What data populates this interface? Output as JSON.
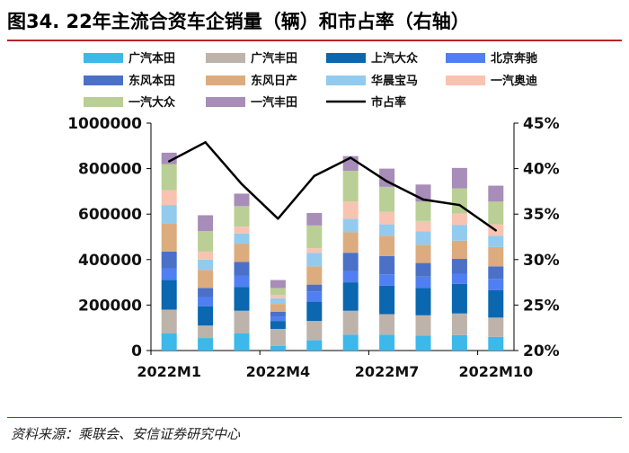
{
  "header": {
    "title": "图34. 22年主流合资车企销量（辆）和市占率（右轴）"
  },
  "footer": {
    "source": "资料来源：乘联会、安信证券研究中心"
  },
  "chart_data": {
    "type": "bar",
    "stacked": true,
    "title": "22年主流合资车企销量（辆）和市占率（右轴）",
    "categories": [
      "2022M1",
      "2022M2",
      "2022M3",
      "2022M4",
      "2022M5",
      "2022M6",
      "2022M7",
      "2022M8",
      "2022M9",
      "2022M10"
    ],
    "x_tick_labels": [
      "2022M1",
      "",
      "",
      "2022M4",
      "",
      "",
      "2022M7",
      "",
      "",
      "2022M10"
    ],
    "y_left": {
      "ylim": [
        0,
        1000000
      ],
      "ticks": [
        0,
        200000,
        400000,
        600000,
        800000,
        1000000
      ],
      "tick_labels": [
        "0",
        "200000",
        "400000",
        "600000",
        "800000",
        "1000000"
      ]
    },
    "y_right": {
      "ylim": [
        20,
        45
      ],
      "ticks": [
        20,
        25,
        30,
        35,
        40,
        45
      ],
      "tick_labels": [
        "20%",
        "25%",
        "30%",
        "35%",
        "40%",
        "45%"
      ]
    },
    "series": [
      {
        "name": "广汽本田",
        "color": "#3cb8ea",
        "values": [
          75000,
          55000,
          75000,
          20000,
          45000,
          70000,
          70000,
          65000,
          68000,
          60000
        ]
      },
      {
        "name": "广汽丰田",
        "color": "#bdb3aa",
        "values": [
          105000,
          55000,
          100000,
          75000,
          85000,
          105000,
          90000,
          90000,
          95000,
          85000
        ]
      },
      {
        "name": "上汽大众",
        "color": "#0a67b0",
        "values": [
          130000,
          85000,
          105000,
          35000,
          85000,
          125000,
          125000,
          120000,
          130000,
          120000
        ]
      },
      {
        "name": "北京奔驰",
        "color": "#4f7ff2",
        "values": [
          50000,
          40000,
          50000,
          20000,
          45000,
          50000,
          50000,
          50000,
          45000,
          50000
        ]
      },
      {
        "name": "东风本田",
        "color": "#4b70c8",
        "values": [
          75000,
          40000,
          60000,
          20000,
          30000,
          80000,
          80000,
          60000,
          65000,
          55000
        ]
      },
      {
        "name": "东风日产",
        "color": "#dcac7e",
        "values": [
          125000,
          80000,
          80000,
          35000,
          80000,
          90000,
          90000,
          80000,
          80000,
          85000
        ]
      },
      {
        "name": "华晨宝马",
        "color": "#93cbee",
        "values": [
          80000,
          45000,
          45000,
          25000,
          60000,
          60000,
          50000,
          60000,
          70000,
          50000
        ]
      },
      {
        "name": "一汽奥迪",
        "color": "#f9c3b1",
        "values": [
          65000,
          35000,
          30000,
          15000,
          20000,
          75000,
          55000,
          45000,
          50000,
          50000
        ]
      },
      {
        "name": "一汽大众",
        "color": "#b9cf95",
        "values": [
          115000,
          90000,
          90000,
          30000,
          100000,
          135000,
          110000,
          85000,
          110000,
          100000
        ]
      },
      {
        "name": "一汽丰田",
        "color": "#a78db8",
        "values": [
          50000,
          70000,
          55000,
          35000,
          55000,
          65000,
          80000,
          75000,
          90000,
          70000
        ]
      }
    ],
    "line_series": {
      "name": "市占率",
      "axis": "right",
      "color": "#000000",
      "values": [
        40.8,
        42.9,
        38.3,
        34.5,
        39.2,
        41.2,
        38.6,
        36.6,
        36.0,
        33.2
      ]
    },
    "legend_position": "top"
  }
}
